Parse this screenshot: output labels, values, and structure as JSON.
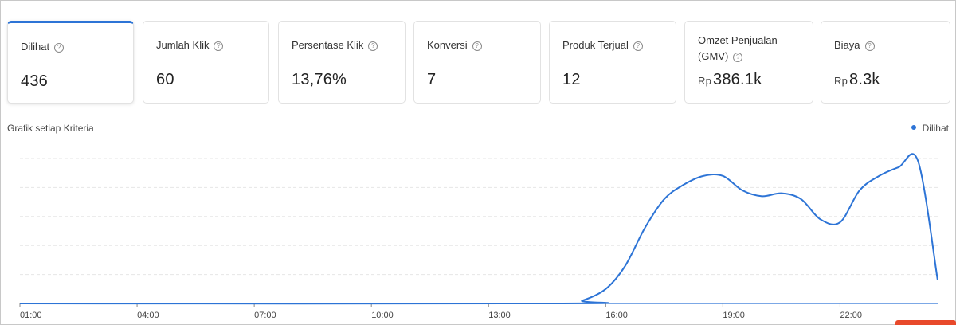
{
  "metrics": [
    {
      "label": "Dilihat",
      "value": "436",
      "currency": "",
      "active": true
    },
    {
      "label": "Jumlah Klik",
      "value": "60",
      "currency": "",
      "active": false
    },
    {
      "label": "Persentase Klik",
      "value": "13,76%",
      "currency": "",
      "active": false
    },
    {
      "label": "Konversi",
      "value": "7",
      "currency": "",
      "active": false
    },
    {
      "label": "Produk Terjual",
      "value": "12",
      "currency": "",
      "active": false
    },
    {
      "label": "Omzet Penjualan (GMV)",
      "value": "386.1k",
      "currency": "Rp",
      "active": false
    },
    {
      "label": "Biaya",
      "value": "8.3k",
      "currency": "Rp",
      "active": false
    }
  ],
  "help_glyph": "?",
  "chart_title": "Grafik setiap Kriteria",
  "colors": {
    "accent": "#2d74d6",
    "grid": "#e6e6e6",
    "axis": "#2d74d6"
  },
  "chart_data": {
    "type": "line",
    "title": "Grafik setiap Kriteria",
    "x_ticks": [
      "01:00",
      "04:00",
      "07:00",
      "10:00",
      "13:00",
      "16:00",
      "19:00",
      "22:00"
    ],
    "legend_position": "top-right",
    "grid": true,
    "series": [
      {
        "name": "Dilihat",
        "x": [
          0,
          13.9,
          14.4,
          15,
          15.5,
          16,
          16.5,
          17,
          17.5,
          18,
          18.5,
          19,
          19.5,
          20,
          20.5,
          21,
          21.5,
          22,
          22.5,
          23,
          23.5
        ],
        "y": [
          0,
          0,
          1,
          5,
          13,
          26,
          36,
          41,
          44,
          44,
          39,
          37,
          38,
          36,
          29,
          28,
          39,
          44,
          47,
          49,
          8
        ]
      }
    ]
  }
}
